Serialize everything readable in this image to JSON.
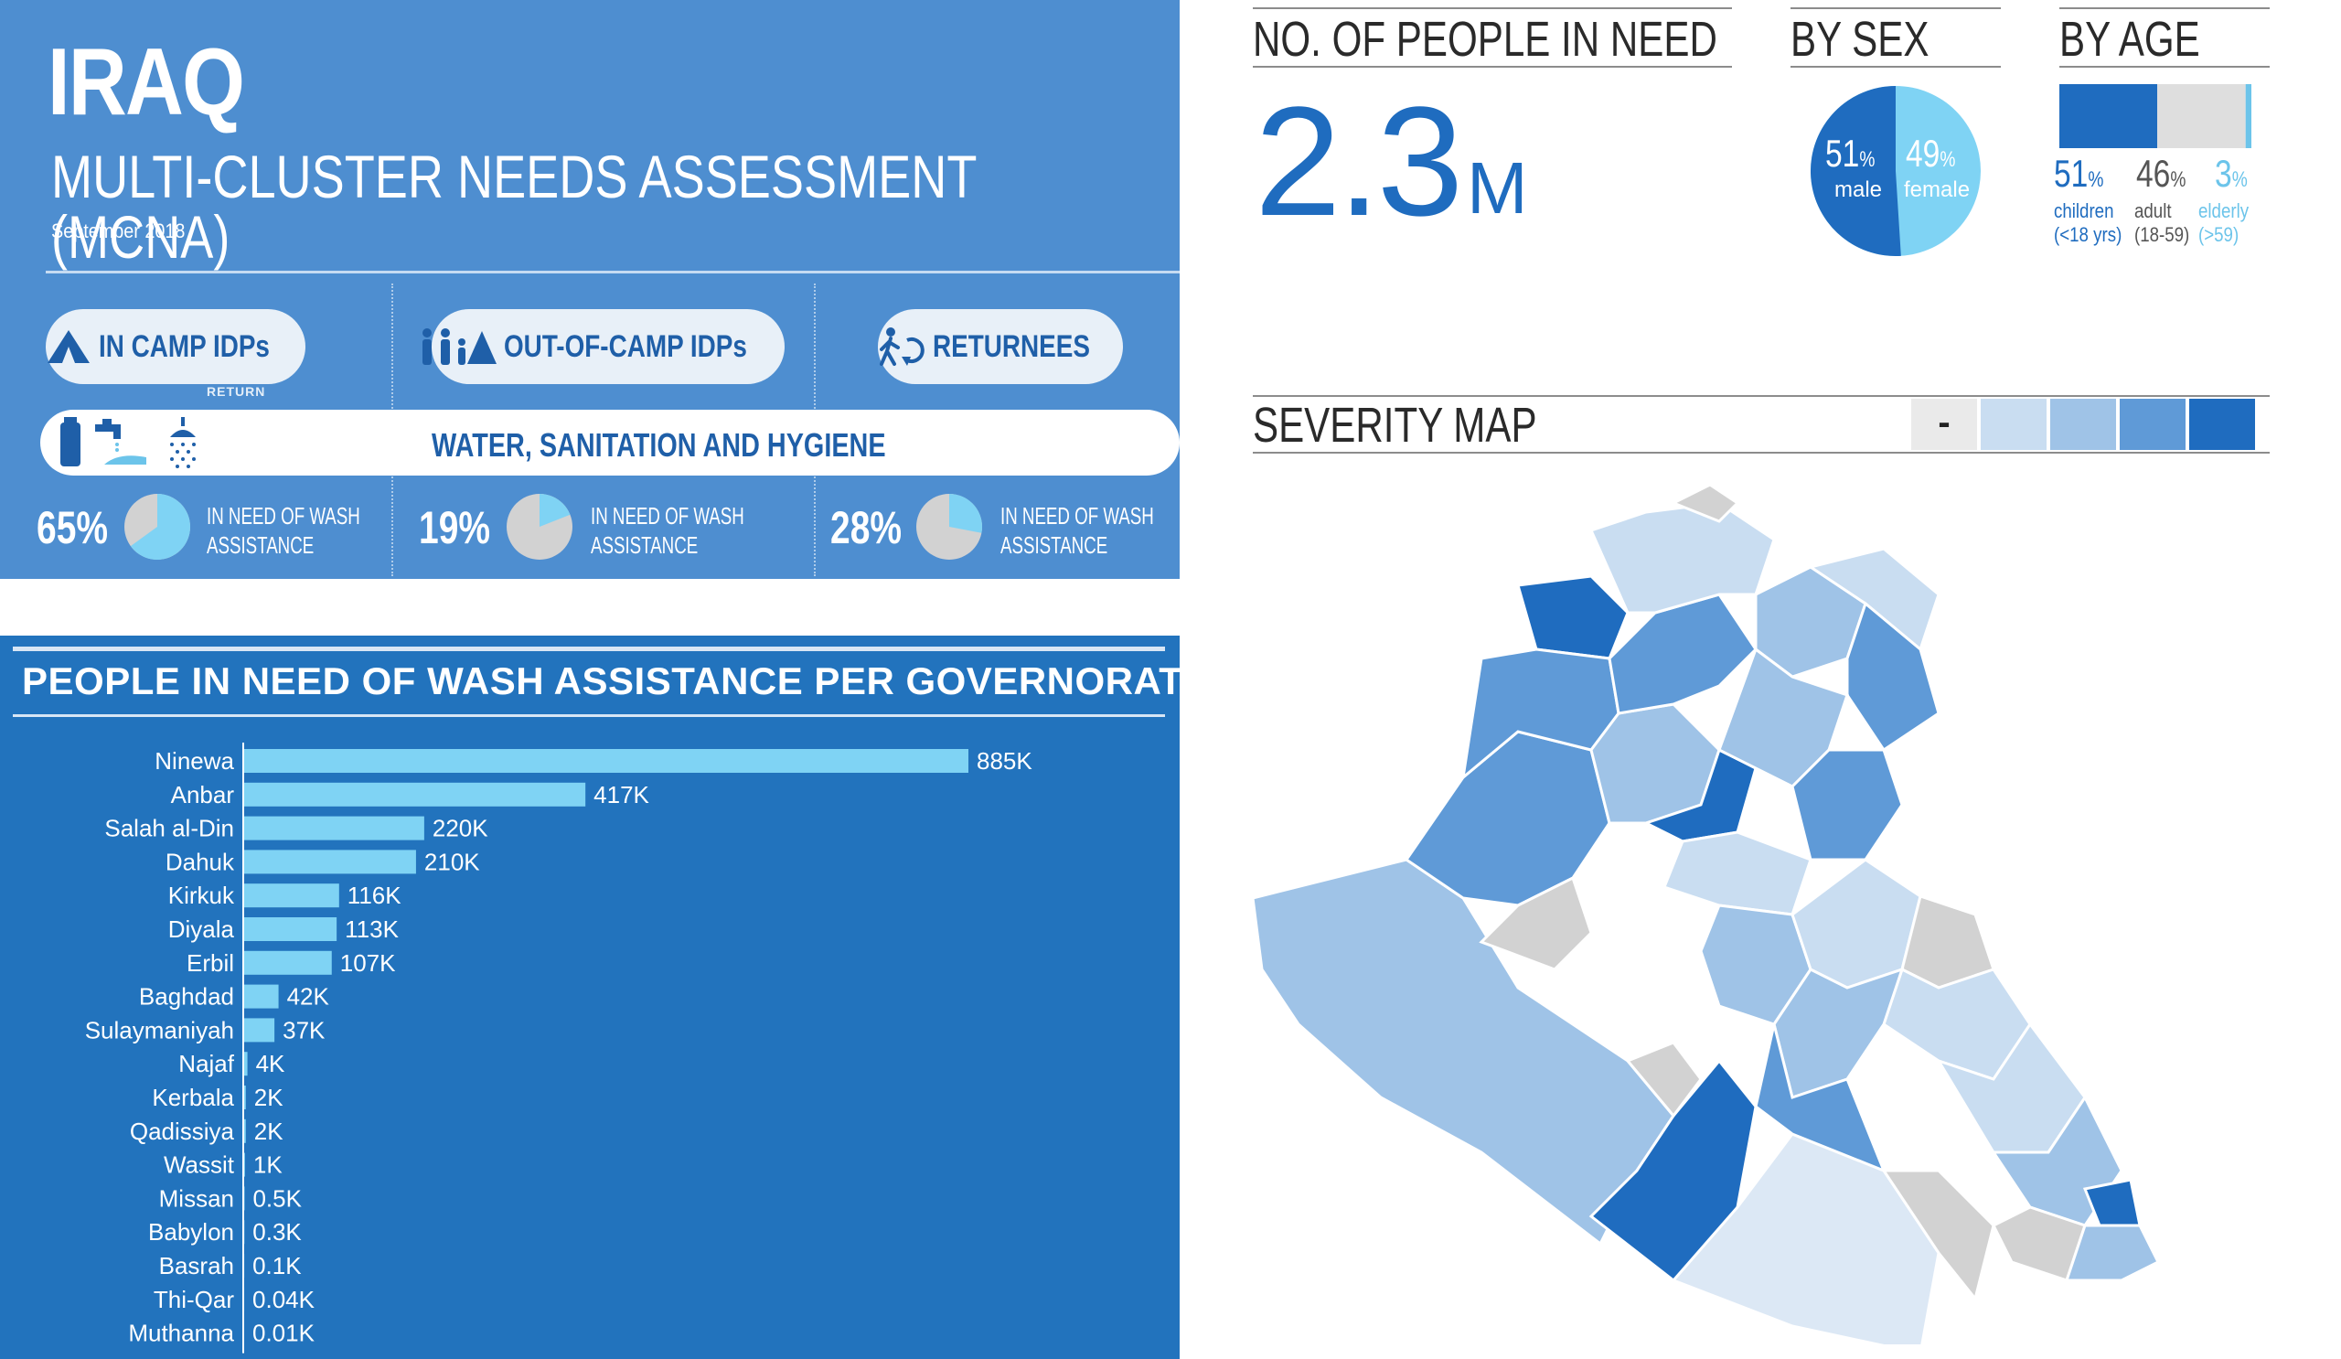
{
  "header": {
    "country": "IRAQ",
    "title": "MULTI-CLUSTER NEEDS ASSESSMENT (MCNA)",
    "date": "September 2018",
    "return_caption": "RETURN"
  },
  "groups": [
    {
      "label": "IN CAMP IDPs",
      "icon": "tent-icon"
    },
    {
      "label": "OUT-OF-CAMP IDPs",
      "icon": "family-icon"
    },
    {
      "label": "RETURNEES",
      "icon": "returnee-icon"
    }
  ],
  "wash": {
    "label": "WATER, SANITATION AND HYGIENE",
    "icons": [
      "water-container-icon",
      "tap-handwash-icon",
      "shower-icon"
    ]
  },
  "wash_stats": [
    {
      "pct": "65%",
      "value": 0.65,
      "line1": "IN NEED OF WASH",
      "line2": "ASSISTANCE"
    },
    {
      "pct": "19%",
      "value": 0.19,
      "line1": "IN NEED OF WASH",
      "line2": "ASSISTANCE"
    },
    {
      "pct": "28%",
      "value": 0.28,
      "line1": "IN NEED OF WASH",
      "line2": "ASSISTANCE"
    }
  ],
  "people_in_need": {
    "heading": "NO. OF PEOPLE IN NEED",
    "value": "2.3",
    "unit": "M"
  },
  "by_sex": {
    "heading": "BY SEX",
    "male_pct": "51",
    "male_value": 0.51,
    "male_label": "male",
    "female_pct": "49",
    "female_value": 0.49,
    "female_label": "female",
    "pct_sign": "%"
  },
  "by_age": {
    "heading": "BY AGE",
    "pct_sign": "%",
    "groups": [
      {
        "pct": "51",
        "value": 0.51,
        "label": "children",
        "sub": "(<18 yrs)"
      },
      {
        "pct": "46",
        "value": 0.46,
        "label": "adult",
        "sub": "(18-59)"
      },
      {
        "pct": "3",
        "value": 0.03,
        "label": "elderly",
        "sub": "(>59)"
      }
    ]
  },
  "severity": {
    "heading": "SEVERITY MAP",
    "no_data_label": "-",
    "legend_colors": [
      "#c9ddf1",
      "#9fc3e7",
      "#5f9ad7",
      "#1f6cbf"
    ]
  },
  "colors": {
    "header_bg": "#4e8ed0",
    "panel_bg": "#2273bd",
    "bar_fill": "#7fd3f4",
    "accent_blue": "#1f6cbf",
    "light_blue": "#6cc4ea",
    "pie_grey": "#d2d2d2"
  },
  "chart_data": {
    "type": "bar",
    "orientation": "horizontal",
    "title": "PEOPLE IN NEED OF WASH ASSISTANCE PER GOVERNORATE",
    "categories": [
      "Ninewa",
      "Anbar",
      "Salah al-Din",
      "Dahuk",
      "Kirkuk",
      "Diyala",
      "Erbil",
      "Baghdad",
      "Sulaymaniyah",
      "Najaf",
      "Kerbala",
      "Qadissiya",
      "Wassit",
      "Missan",
      "Babylon",
      "Basrah",
      "Thi-Qar",
      "Muthanna"
    ],
    "values": [
      885000,
      417000,
      220000,
      210000,
      116000,
      113000,
      107000,
      42000,
      37000,
      4000,
      2000,
      2000,
      1000,
      500,
      300,
      100,
      40,
      10
    ],
    "labels": [
      "885K",
      "417K",
      "220K",
      "210K",
      "116K",
      "113K",
      "107K",
      "42K",
      "37K",
      "4K",
      "2K",
      "2K",
      "1K",
      "0.5K",
      "0.3K",
      "0.1K",
      "0.04K",
      "0.01K"
    ],
    "xlim": [
      0,
      885000
    ],
    "grid": false,
    "legend": "none"
  }
}
